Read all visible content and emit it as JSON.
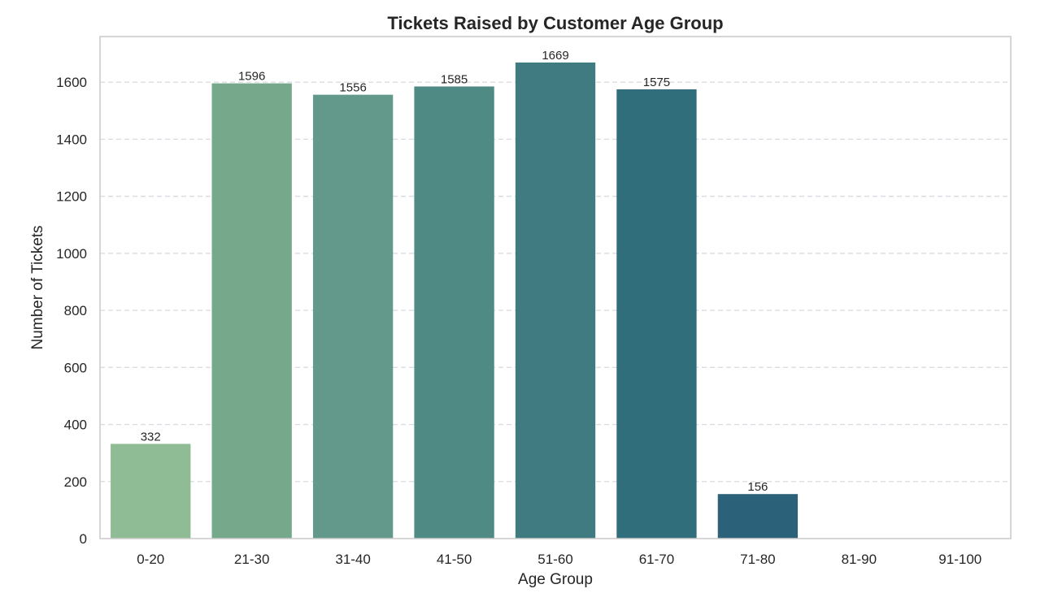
{
  "chart_data": {
    "type": "bar",
    "title": "Tickets Raised by Customer Age Group",
    "xlabel": "Age Group",
    "ylabel": "Number of Tickets",
    "categories": [
      "0-20",
      "21-30",
      "31-40",
      "41-50",
      "51-60",
      "61-70",
      "71-80",
      "81-90",
      "91-100"
    ],
    "values": [
      332,
      1596,
      1556,
      1585,
      1669,
      1575,
      156,
      0,
      0
    ],
    "data_labels": [
      "332",
      "1596",
      "1556",
      "1585",
      "1669",
      "1575",
      "156",
      "",
      ""
    ],
    "colors": [
      "#8fbc94",
      "#76a88c",
      "#62998b",
      "#4f8a85",
      "#3f7b81",
      "#316e7c",
      "#2b6279",
      "#255676",
      "#1f4a72"
    ],
    "ylim": [
      0,
      1760
    ],
    "yticks": [
      0,
      200,
      400,
      600,
      800,
      1000,
      1200,
      1400,
      1600
    ],
    "grid": "horizontal dashed",
    "legend": "none"
  }
}
